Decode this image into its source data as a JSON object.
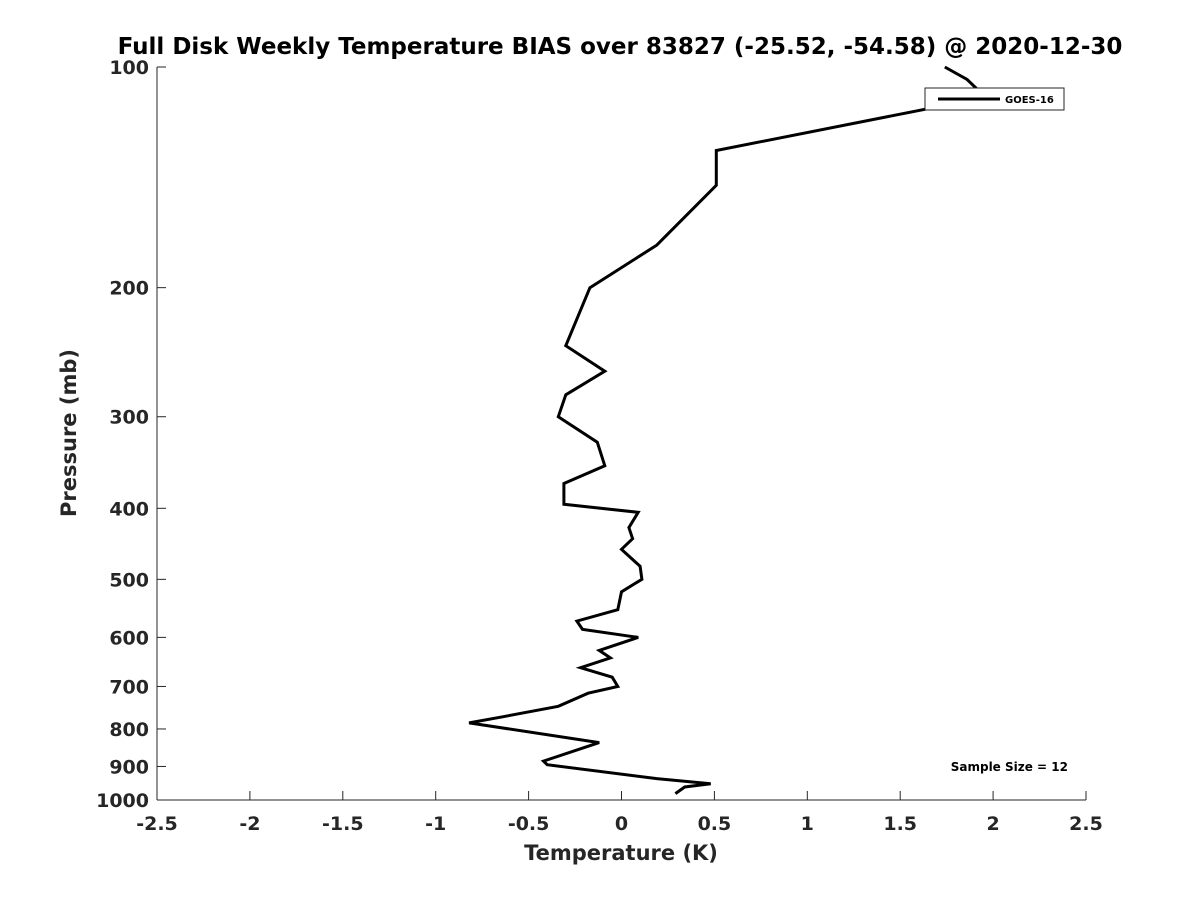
{
  "chart_data": {
    "type": "line",
    "title": "Full Disk Weekly Temperature BIAS over 83827 (-25.52, -54.58) @ 2020-12-30",
    "xlabel": "Temperature (K)",
    "ylabel": "Pressure (mb)",
    "xlim": [
      -2.5,
      2.5
    ],
    "ylim": [
      100,
      1000
    ],
    "y_scale": "log",
    "y_reversed": true,
    "xticks": [
      -2.5,
      -2,
      -1.5,
      -1,
      -0.5,
      0,
      0.5,
      1,
      1.5,
      2,
      2.5
    ],
    "xtick_labels": [
      "-2.5",
      "-2",
      "-1.5",
      "-1",
      "-0.5",
      "0",
      "0.5",
      "1",
      "1.5",
      "2",
      "2.5"
    ],
    "yticks": [
      100,
      200,
      300,
      400,
      500,
      600,
      700,
      800,
      900,
      1000
    ],
    "ytick_labels": [
      "100",
      "200",
      "300",
      "400",
      "500",
      "600",
      "700",
      "800",
      "900",
      "1000"
    ],
    "grid": false,
    "legend_position": "top-right",
    "series": [
      {
        "name": "GOES-16",
        "color": "#000000",
        "x": [
          1.74,
          1.86,
          1.96,
          0.51,
          0.51,
          0.19,
          -0.17,
          -0.3,
          -0.09,
          -0.3,
          -0.34,
          -0.13,
          -0.09,
          -0.31,
          -0.31,
          0.09,
          0.04,
          0.06,
          0.0,
          0.1,
          0.11,
          0.0,
          -0.02,
          -0.24,
          -0.21,
          0.09,
          -0.12,
          -0.06,
          -0.22,
          -0.05,
          -0.02,
          -0.18,
          -0.34,
          -0.64,
          -0.82,
          -0.12,
          -0.42,
          -0.4,
          0.19,
          0.48,
          0.34,
          0.29
        ],
        "y": [
          100,
          104,
          110,
          130,
          145,
          175,
          200,
          240,
          260,
          280,
          300,
          325,
          350,
          370,
          395,
          405,
          425,
          440,
          455,
          480,
          500,
          520,
          550,
          570,
          585,
          600,
          625,
          640,
          660,
          680,
          700,
          715,
          745,
          770,
          785,
          835,
          885,
          895,
          935,
          950,
          960,
          980
        ]
      }
    ],
    "annotations": [
      {
        "text": "Sample Size = 12",
        "position": "bottom-right"
      }
    ]
  }
}
